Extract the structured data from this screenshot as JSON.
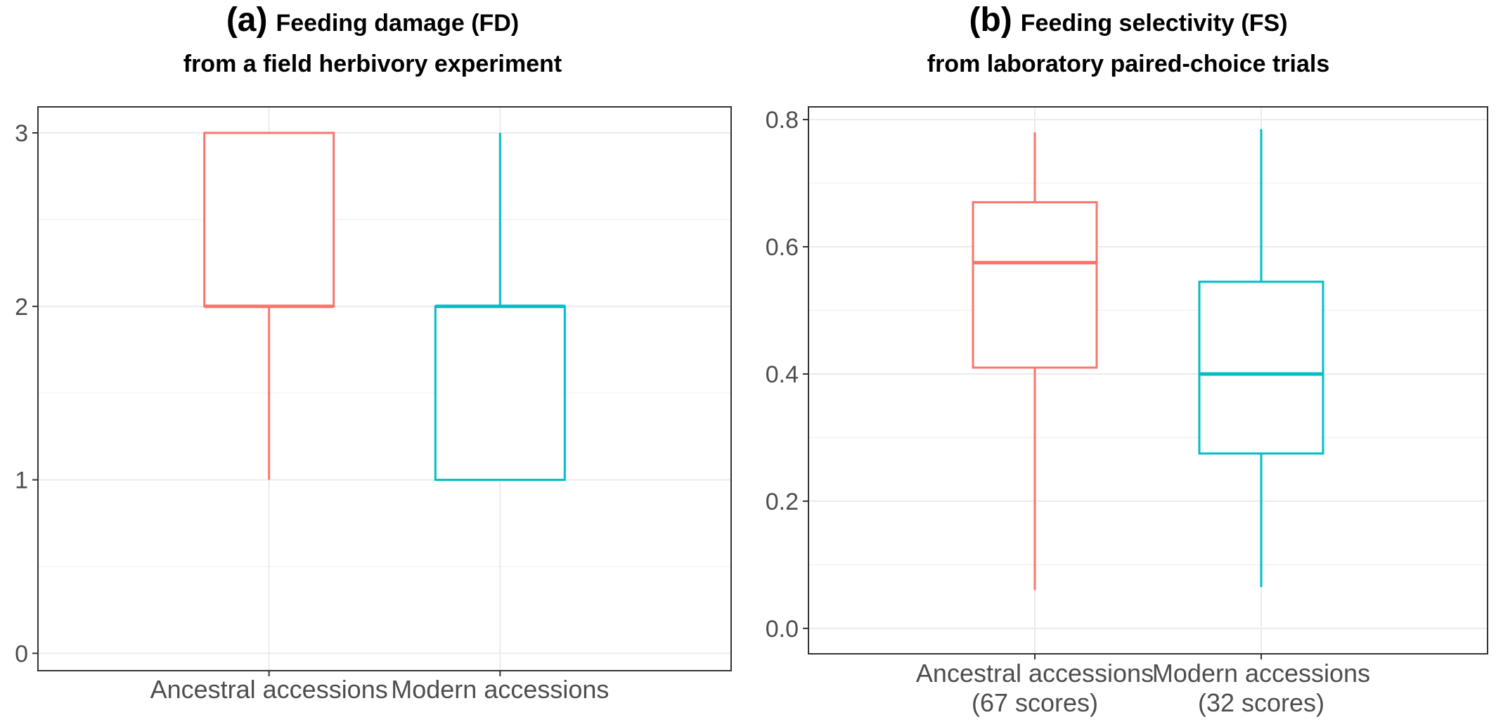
{
  "chart_data": [
    {
      "type": "boxplot",
      "panel": "(a)",
      "title_line1": "Feeding damage (FD)",
      "title_line2": "from a field herbivory experiment",
      "xlabel": "",
      "ylabel": "",
      "ylim": [
        -0.1,
        3.15
      ],
      "yticks": [
        0,
        1,
        2,
        3
      ],
      "grid": true,
      "legend": "none",
      "categories": [
        {
          "label": "Ancestral accessions",
          "sublabel": "",
          "color": "#F8766D",
          "min": 1,
          "q1": 2,
          "median": 2,
          "q3": 3,
          "max": 3
        },
        {
          "label": "Modern accessions",
          "sublabel": "",
          "color": "#00BFC4",
          "min": 1,
          "q1": 1,
          "median": 2,
          "q3": 2,
          "max": 3
        }
      ]
    },
    {
      "type": "boxplot",
      "panel": "(b)",
      "title_line1": "Feeding selectivity (FS)",
      "title_line2": "from laboratory paired-choice trials",
      "xlabel": "",
      "ylabel": "",
      "ylim": [
        -0.04,
        0.82
      ],
      "yticks": [
        0.0,
        0.2,
        0.4,
        0.6,
        0.8
      ],
      "grid": true,
      "legend": "none",
      "categories": [
        {
          "label": "Ancestral accessions",
          "sublabel": "(67 scores)",
          "color": "#F8766D",
          "min": 0.06,
          "q1": 0.41,
          "median": 0.575,
          "q3": 0.67,
          "max": 0.78
        },
        {
          "label": "Modern accessions",
          "sublabel": "(32 scores)",
          "color": "#00BFC4",
          "min": 0.065,
          "q1": 0.275,
          "median": 0.4,
          "q3": 0.545,
          "max": 0.785
        }
      ]
    }
  ]
}
